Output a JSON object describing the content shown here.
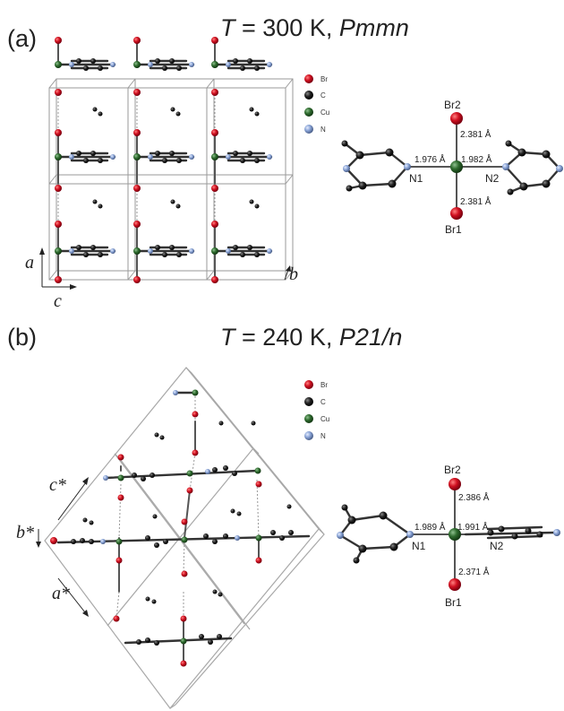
{
  "panel_a": {
    "letter": "(a)",
    "title_T": "T",
    "title_eq": " = 300 K, ",
    "title_group": "Pmmn",
    "legend": {
      "br": "Br",
      "c": "C",
      "cu": "Cu",
      "n": "N"
    },
    "axis_a": "a",
    "axis_b": "b",
    "axis_c": "c",
    "molecule": {
      "br_top": "Br2",
      "br_bottom": "Br1",
      "n_left": "N1",
      "n_right": "N2",
      "d_cu_br2": "2.381 Å",
      "d_cu_br1": "2.381 Å",
      "d_cu_n1": "1.976 Å",
      "d_cu_n2": "1.982 Å"
    }
  },
  "panel_b": {
    "letter": "(b)",
    "title_T": "T",
    "title_eq": " = 240 K, ",
    "title_group": "P21/n",
    "legend": {
      "br": "Br",
      "c": "C",
      "cu": "Cu",
      "n": "N"
    },
    "axis_c": "c*",
    "axis_b": "b*",
    "axis_a": "a*",
    "molecule": {
      "br_top": "Br2",
      "br_bottom": "Br1",
      "n_left": "N1",
      "n_right": "N2",
      "d_cu_br2": "2.386 Å",
      "d_cu_br1": "2.371 Å",
      "d_cu_n1": "1.989 Å",
      "d_cu_n2": "1.991 Å"
    }
  },
  "colors": {
    "br": "#c8102e",
    "c": "#111111",
    "cu": "#2e6b2e",
    "n": "#8aa4d6"
  }
}
